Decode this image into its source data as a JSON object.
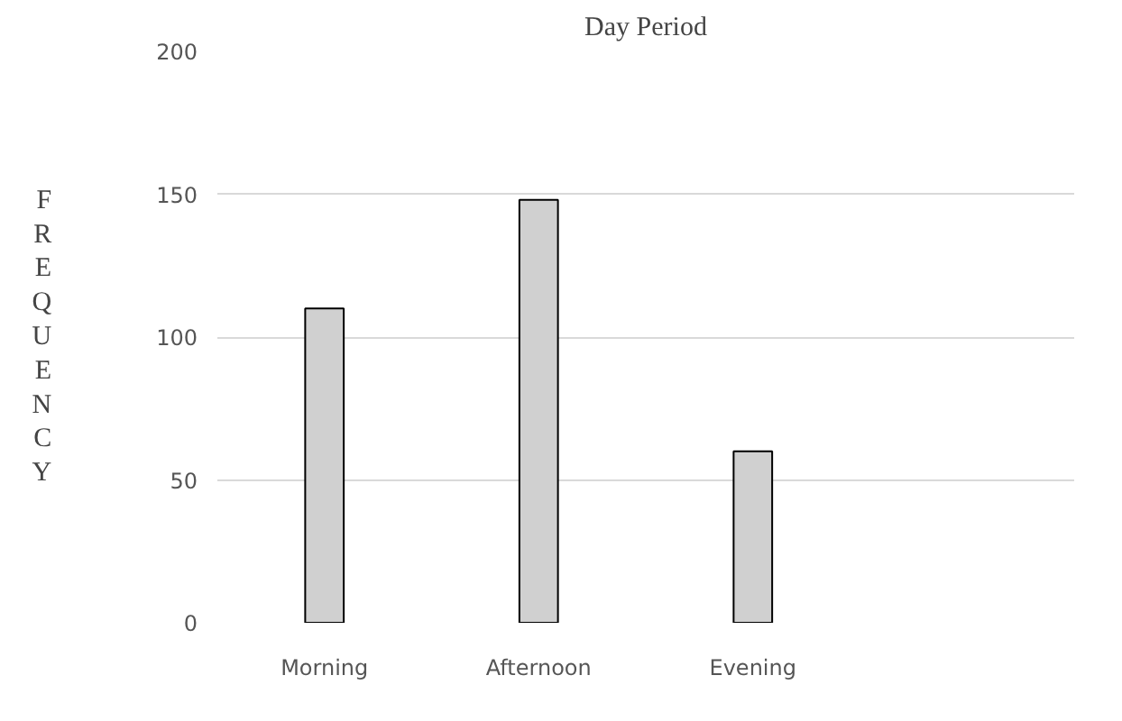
{
  "chart_data": {
    "type": "bar",
    "title": "Day Period",
    "ylabel": "FREQUENCY",
    "categories": [
      "Morning",
      "Afternoon",
      "Evening",
      null
    ],
    "series": [
      {
        "color": "#d0d0d0",
        "values": [
          110,
          148,
          60,
          null
        ]
      }
    ],
    "ylim": [
      0,
      200
    ],
    "yticks": [
      0,
      50,
      100,
      150,
      200
    ],
    "grid": "y"
  }
}
